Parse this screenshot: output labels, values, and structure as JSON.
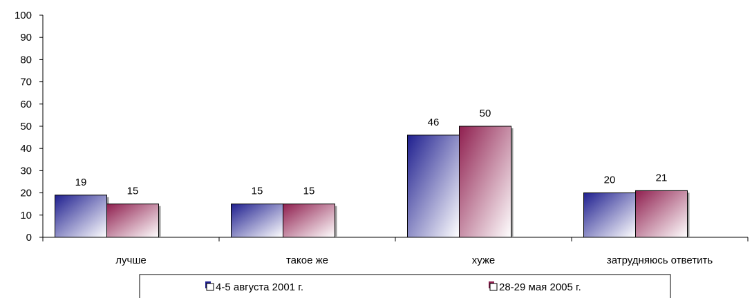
{
  "chart_data": {
    "type": "bar",
    "categories": [
      "лучше",
      "такое же",
      "хуже",
      "затрудняюсь ответить"
    ],
    "series": [
      {
        "name": "4-5 августа 2001 г.",
        "values": [
          19,
          15,
          46,
          20
        ],
        "color": "#1f1f8f"
      },
      {
        "name": "28-29 мая 2005 г.",
        "values": [
          15,
          15,
          50,
          21
        ],
        "color": "#8f1f4f"
      }
    ],
    "ylim": [
      0,
      100
    ],
    "yticks": [
      0,
      10,
      20,
      30,
      40,
      50,
      60,
      70,
      80,
      90,
      100
    ],
    "legend_position": "bottom",
    "grid": false
  }
}
